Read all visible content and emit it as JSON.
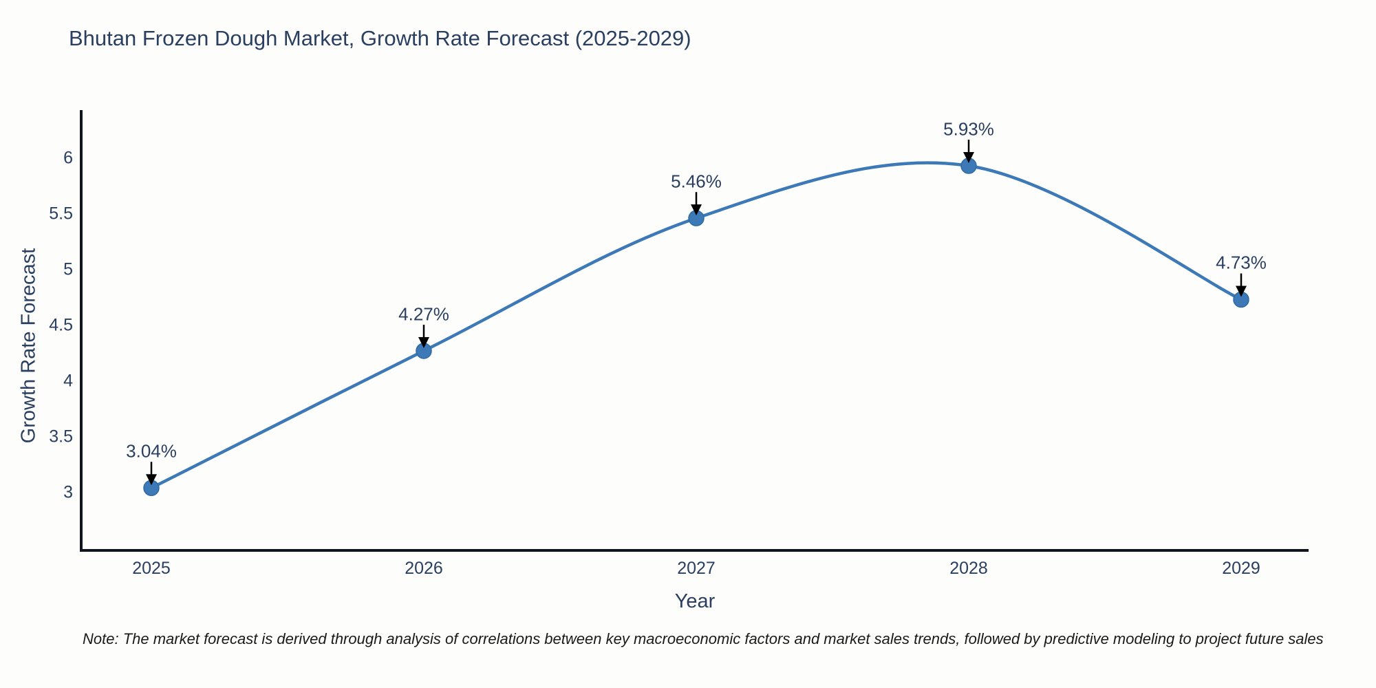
{
  "chart": {
    "title": "Bhutan Frozen Dough Market, Growth Rate Forecast (2025-2029)",
    "note": "Note: The market forecast is derived through analysis of correlations between key macroeconomic factors and market sales trends, followed by predictive modeling to project future sales",
    "colors": {
      "line": "#3c79b6",
      "marker_fill": "#3c79b6",
      "marker_edge": "#2f6aa3",
      "axis_line": "#10141c",
      "arrow": "#000000",
      "text": "#2a3f5f",
      "note_text": "#1a1a1a",
      "background": "#fdfdfc"
    }
  },
  "chart_data": {
    "type": "line",
    "title": "Bhutan Frozen Dough Market, Growth Rate Forecast (2025-2029)",
    "xlabel": "Year",
    "ylabel": "Growth Rate Forecast",
    "categories": [
      "2025",
      "2026",
      "2027",
      "2028",
      "2029"
    ],
    "values": [
      3.04,
      4.27,
      5.46,
      5.93,
      4.73
    ],
    "point_labels": [
      "3.04%",
      "4.27%",
      "5.46%",
      "5.93%",
      "4.73%"
    ],
    "series_name": "Growth Rate Forecast",
    "yticks": [
      3,
      3.5,
      4,
      4.5,
      5,
      5.5,
      6
    ],
    "ytick_labels": [
      "3",
      "3.5",
      "4",
      "4.5",
      "5",
      "5.5",
      "6"
    ],
    "ylim": [
      2.48,
      6.43
    ],
    "line_shape": "spline",
    "grid": false,
    "legend_position": "none",
    "annotations": "value labels with downward arrows above each point"
  }
}
